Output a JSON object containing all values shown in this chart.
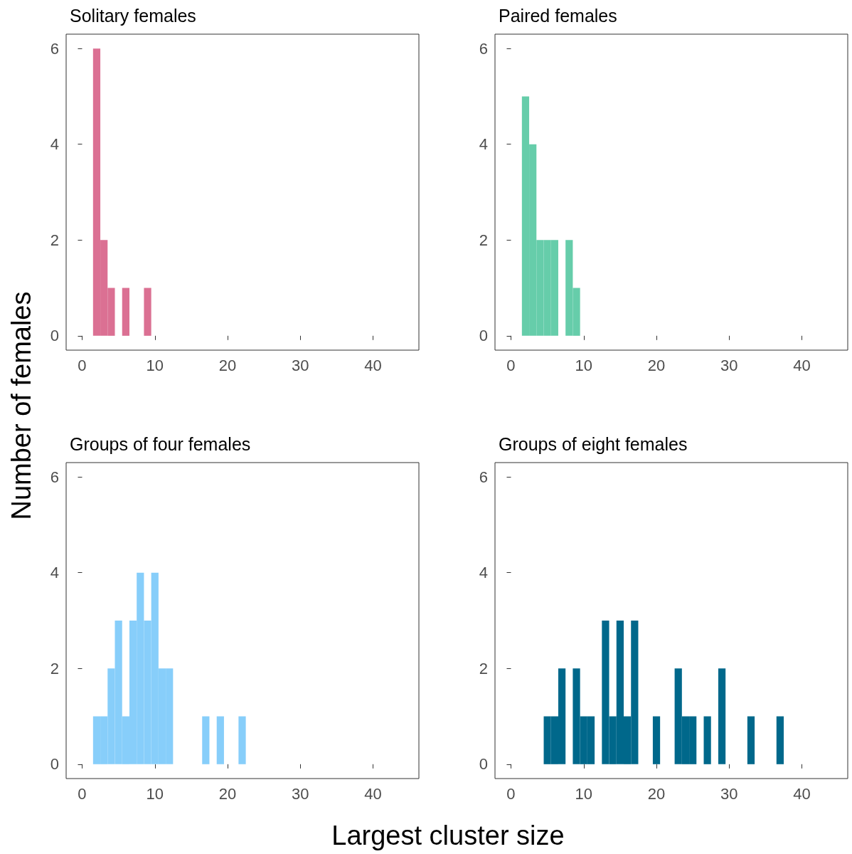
{
  "chart_data": [
    {
      "type": "histogram",
      "title": "Solitary females",
      "ylabel": "Number of females",
      "bins": [
        1.5,
        2.5,
        3.5,
        4.5,
        5.5,
        6.5,
        7.5,
        8.5,
        9.5
      ],
      "values": [
        6,
        2,
        1,
        0,
        1,
        0,
        0,
        1
      ],
      "color": "#db7093",
      "xlim": [
        -2.2,
        46.3
      ],
      "ylim": [
        -0.3,
        6.3
      ],
      "xticks": [
        0,
        10,
        20,
        30,
        40
      ],
      "yticks": [
        0,
        2,
        4,
        6
      ],
      "grid": false
    },
    {
      "type": "histogram",
      "title": "Paired females",
      "bins": [
        1.5,
        2.5,
        3.5,
        4.5,
        5.5,
        6.5,
        7.5,
        8.5,
        9.5
      ],
      "values": [
        5,
        4,
        2,
        2,
        2,
        0,
        2,
        1
      ],
      "color": "#66cdaa",
      "xlim": [
        -2.2,
        46.3
      ],
      "ylim": [
        -0.3,
        6.3
      ],
      "xticks": [
        0,
        10,
        20,
        30,
        40
      ],
      "yticks": [
        0,
        2,
        4,
        6
      ],
      "grid": false
    },
    {
      "type": "histogram",
      "title": "Groups of four females",
      "xlabel": "Largest cluster size",
      "bins": [
        1.5,
        2.5,
        3.5,
        4.5,
        5.5,
        6.5,
        7.5,
        8.5,
        9.5,
        10.5,
        11.5,
        12.5,
        13.5,
        14.5,
        15.5,
        16.5,
        17.5,
        18.5,
        19.5,
        20.5,
        21.5,
        22.5
      ],
      "values": [
        1,
        1,
        2,
        3,
        1,
        3,
        4,
        3,
        4,
        2,
        2,
        0,
        0,
        0,
        0,
        1,
        0,
        1,
        0,
        0,
        1
      ],
      "color": "#87cefa",
      "xlim": [
        -2.2,
        46.3
      ],
      "ylim": [
        -0.3,
        6.3
      ],
      "xticks": [
        0,
        10,
        20,
        30,
        40
      ],
      "yticks": [
        0,
        2,
        4,
        6
      ],
      "grid": false
    },
    {
      "type": "histogram",
      "title": "Groups of eight females",
      "bins": [
        4.5,
        5.5,
        6.5,
        7.5,
        8.5,
        9.5,
        10.5,
        11.5,
        12.5,
        13.5,
        14.5,
        15.5,
        16.5,
        17.5,
        18.5,
        19.5,
        20.5,
        21.5,
        22.5,
        23.5,
        24.5,
        25.5,
        26.5,
        27.5,
        28.5,
        29.5,
        30.5,
        31.5,
        32.5,
        33.5,
        34.5,
        35.5,
        36.5,
        37.5
      ],
      "values": [
        1,
        1,
        2,
        0,
        2,
        1,
        1,
        0,
        3,
        1,
        3,
        1,
        3,
        0,
        0,
        1,
        0,
        0,
        2,
        1,
        1,
        0,
        1,
        0,
        2,
        0,
        0,
        0,
        1,
        0,
        0,
        0,
        1
      ],
      "color": "#00688b",
      "xlim": [
        -2.2,
        46.3
      ],
      "ylim": [
        -0.3,
        6.3
      ],
      "xticks": [
        0,
        10,
        20,
        30,
        40
      ],
      "yticks": [
        0,
        2,
        4,
        6
      ],
      "grid": false
    }
  ]
}
